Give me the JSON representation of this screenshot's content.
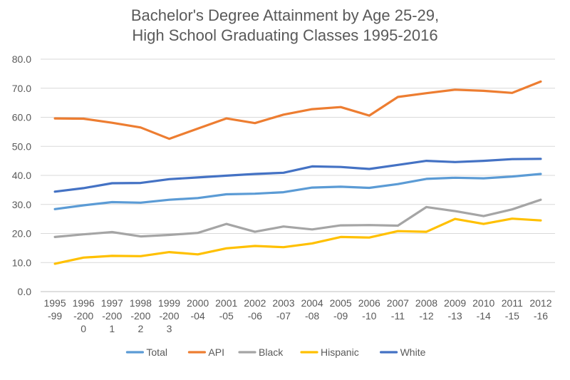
{
  "chart_data": {
    "type": "line",
    "title_lines": [
      "Bachelor's Degree Attainment by Age 25-29,",
      "High School Graduating Classes 1995-2016"
    ],
    "categories": [
      [
        "1995",
        "-99"
      ],
      [
        "1996",
        "-200",
        "0"
      ],
      [
        "1997",
        "-200",
        "1"
      ],
      [
        "1998",
        "-200",
        "2"
      ],
      [
        "1999",
        "-200",
        "3"
      ],
      [
        "2000",
        "-04"
      ],
      [
        "2001",
        "-05"
      ],
      [
        "2002",
        "-06"
      ],
      [
        "2003",
        "-07"
      ],
      [
        "2004",
        "-08"
      ],
      [
        "2005",
        "-09"
      ],
      [
        "2006",
        "-10"
      ],
      [
        "2007",
        "-11"
      ],
      [
        "2008",
        "-12"
      ],
      [
        "2009",
        "-13"
      ],
      [
        "2010",
        "-14"
      ],
      [
        "2011",
        "-15"
      ],
      [
        "2012",
        "-16"
      ]
    ],
    "ylim": [
      0,
      80
    ],
    "y_ticks": [
      "0.0",
      "10.0",
      "20.0",
      "30.0",
      "40.0",
      "50.0",
      "60.0",
      "70.0",
      "80.0"
    ],
    "grid": true,
    "legend_position": "bottom",
    "series": [
      {
        "name": "Total",
        "color": "#5B9BD5",
        "values": [
          28.4,
          29.7,
          30.8,
          30.6,
          31.6,
          32.2,
          33.5,
          33.7,
          34.2,
          35.8,
          36.1,
          35.7,
          37.0,
          38.8,
          39.2,
          39.0,
          39.6,
          40.5
        ]
      },
      {
        "name": "API",
        "color": "#ED7D31",
        "values": [
          59.6,
          59.5,
          58.1,
          56.5,
          52.6,
          56.1,
          59.6,
          58.0,
          60.9,
          62.8,
          63.5,
          60.6,
          67.0,
          68.3,
          69.5,
          69.1,
          68.4,
          72.3
        ]
      },
      {
        "name": "Black",
        "color": "#A5A5A5",
        "values": [
          18.8,
          19.7,
          20.5,
          19.0,
          19.5,
          20.2,
          23.3,
          20.6,
          22.4,
          21.4,
          22.8,
          22.9,
          22.7,
          29.1,
          27.7,
          26.0,
          28.3,
          31.6
        ]
      },
      {
        "name": "Hispanic",
        "color": "#FFC000",
        "values": [
          9.6,
          11.7,
          12.3,
          12.2,
          13.6,
          12.8,
          14.9,
          15.7,
          15.3,
          16.6,
          18.8,
          18.6,
          20.8,
          20.6,
          25.0,
          23.3,
          25.1,
          24.5
        ]
      },
      {
        "name": "White",
        "color": "#4472C4",
        "values": [
          34.4,
          35.6,
          37.3,
          37.4,
          38.7,
          39.3,
          39.9,
          40.5,
          40.9,
          43.1,
          42.9,
          42.2,
          43.6,
          45.0,
          44.6,
          45.0,
          45.6,
          45.7
        ]
      }
    ]
  }
}
